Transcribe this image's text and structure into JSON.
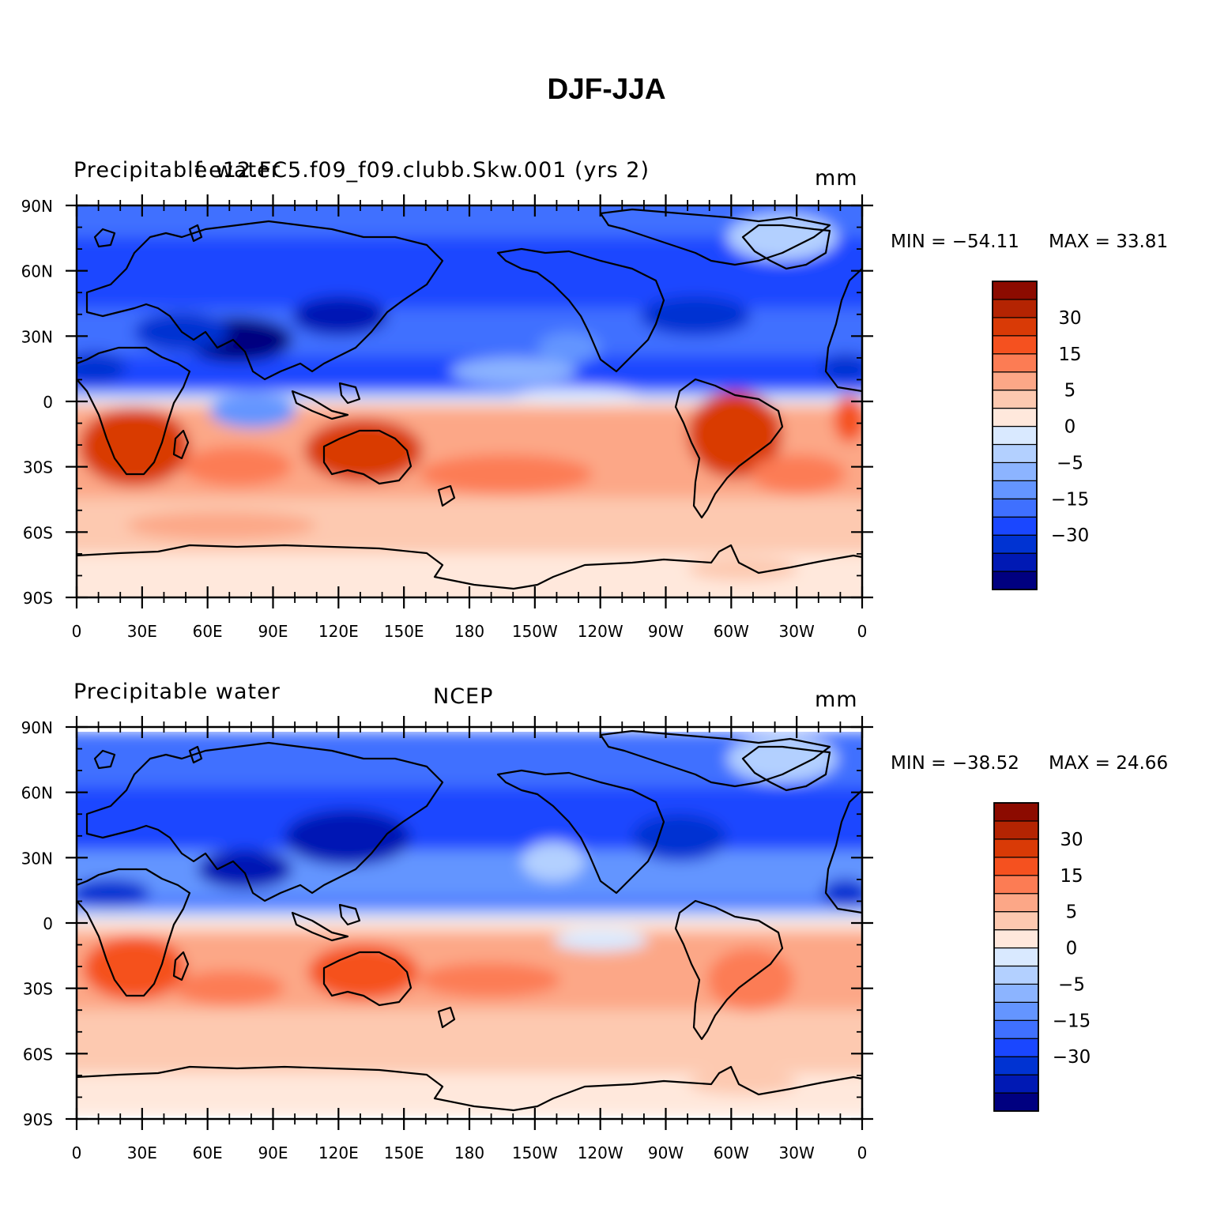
{
  "figure": {
    "title": "DJF-JJA"
  },
  "colorbar": {
    "colors": [
      "#000080",
      "#0019b4",
      "#0033d2",
      "#1a47ff",
      "#3f70ff",
      "#6495ff",
      "#8cb4ff",
      "#b3d0ff",
      "#d9e9ff",
      "#ffe8dc",
      "#fdc9b0",
      "#fca787",
      "#fc7c54",
      "#f5511f",
      "#d93a06",
      "#b42402",
      "#8c0b00"
    ],
    "labels": [
      "30",
      "15",
      "5",
      "0",
      "−5",
      "−15",
      "−30"
    ]
  },
  "panels": [
    {
      "left_label": "Precipitable water",
      "center_label": "f.e12.FC5.f09_f09.clubb.Skw.001 (yrs 2)",
      "units": "mm",
      "min_text": "MIN = −54.11",
      "max_text": "MAX =   33.81"
    },
    {
      "left_label": "Precipitable water",
      "center_label": "NCEP",
      "units": "mm",
      "min_text": "MIN = −38.52",
      "max_text": "MAX =   24.66"
    }
  ],
  "axes": {
    "lat_ticks": [
      "90N",
      "60N",
      "30N",
      "0",
      "30S",
      "60S",
      "90S"
    ],
    "lon_ticks": [
      "0",
      "30E",
      "60E",
      "90E",
      "120E",
      "150E",
      "180",
      "150W",
      "120W",
      "90W",
      "60W",
      "30W",
      "0"
    ]
  }
}
